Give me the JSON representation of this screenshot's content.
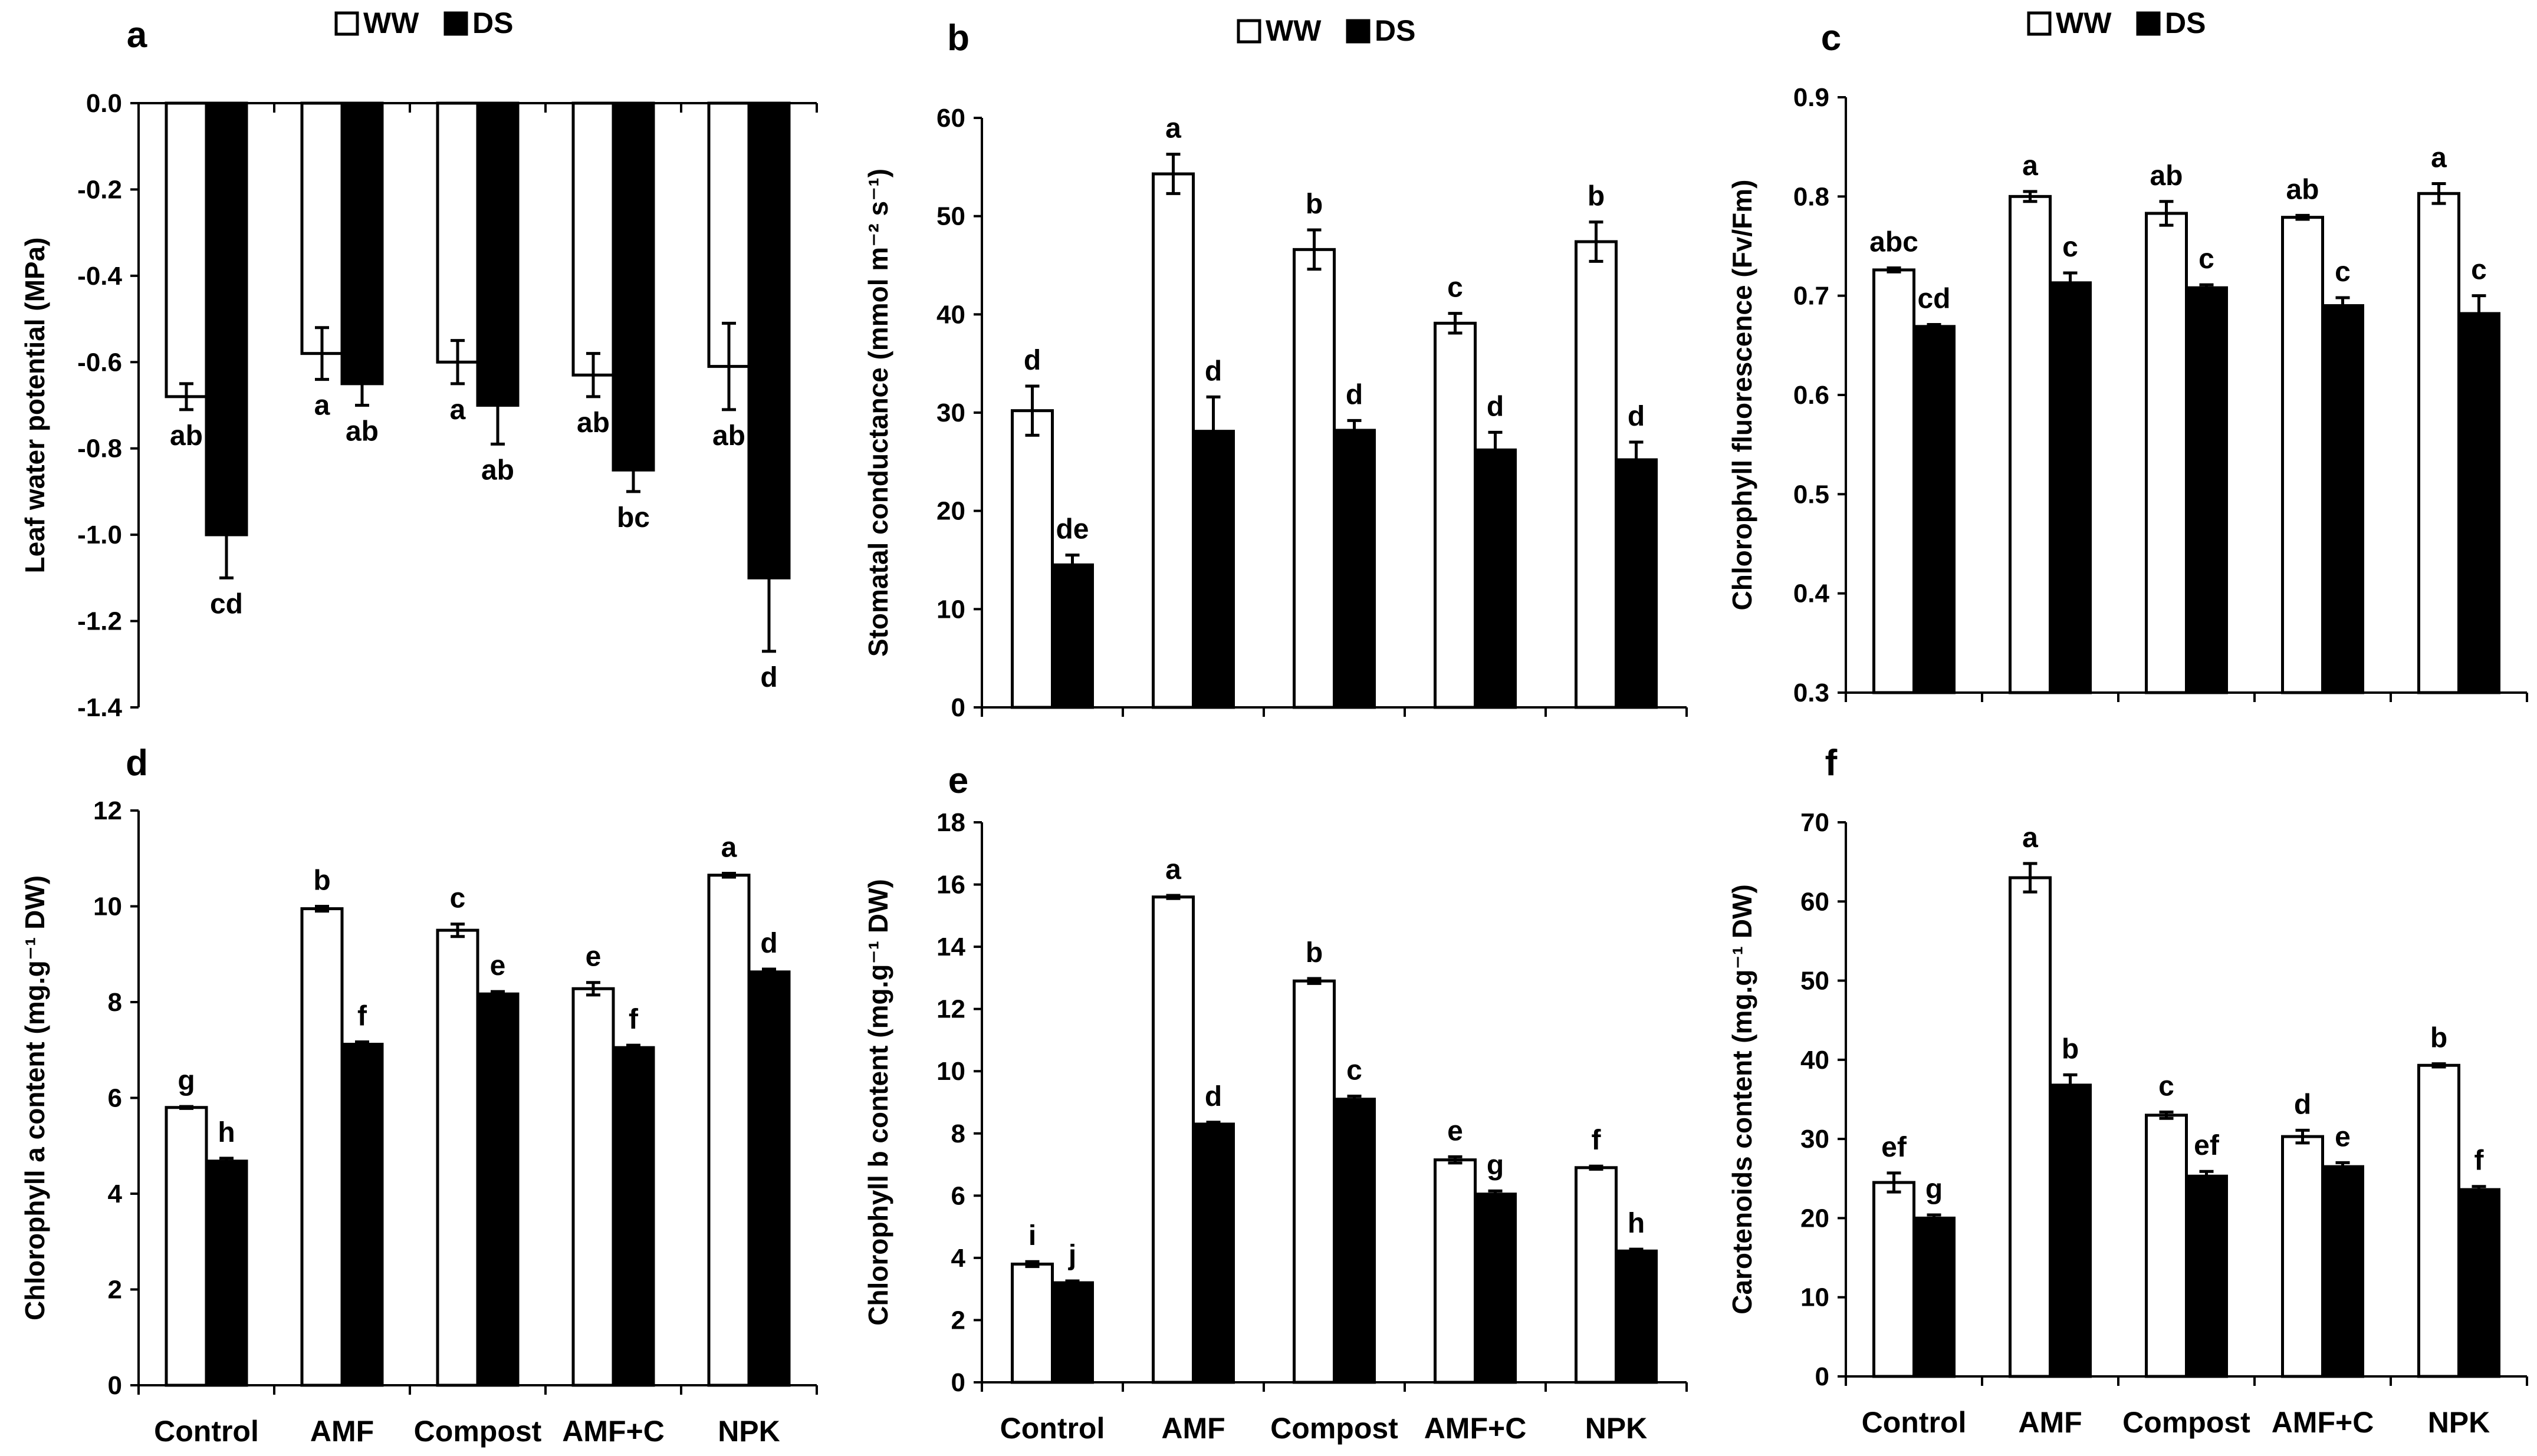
{
  "colors": {
    "ww": "#ffffff",
    "ds": "#000000",
    "stroke": "#000000"
  },
  "chart_data": [
    {
      "panel": "a",
      "type": "bar",
      "ylabel": "Leaf water potential  (MPa)",
      "ylim": [
        -1.4,
        0
      ],
      "yticks": [
        0,
        -0.2,
        -0.4,
        -0.6,
        -0.8,
        -1.0,
        -1.2,
        -1.4
      ],
      "tick_labels": [
        "0.0",
        "-0.2",
        "-0.4",
        "-0.6",
        "-0.8",
        "-1.0",
        "-1.2",
        "-1.4"
      ],
      "categories": [
        "Control",
        "AMF",
        "Compost",
        "AMF+C",
        "NPK"
      ],
      "show_categories": false,
      "legend": [
        "WW",
        "DS"
      ],
      "series": [
        {
          "name": "WW",
          "values": [
            -0.68,
            -0.58,
            -0.6,
            -0.63,
            -0.61
          ],
          "errors": [
            0.03,
            0.06,
            0.05,
            0.05,
            0.1
          ],
          "letters": [
            "ab",
            "a",
            "a",
            "ab",
            "ab"
          ]
        },
        {
          "name": "DS",
          "values": [
            -1.0,
            -0.65,
            -0.7,
            -0.85,
            -1.1
          ],
          "errors": [
            0.1,
            0.05,
            0.09,
            0.05,
            0.17
          ],
          "letters": [
            "cd",
            "ab",
            "ab",
            "bc",
            "d"
          ]
        }
      ]
    },
    {
      "panel": "b",
      "type": "bar",
      "ylabel": "Stomatal conductance (mmol m⁻² s⁻¹)",
      "ylim": [
        0,
        60
      ],
      "yticks": [
        0,
        10,
        20,
        30,
        40,
        50,
        60
      ],
      "tick_labels": [
        "0",
        "10",
        "20",
        "30",
        "40",
        "50",
        "60"
      ],
      "categories": [
        "Control",
        "AMF",
        "Compost",
        "AMF+C",
        "NPK"
      ],
      "show_categories": false,
      "legend": [
        "WW",
        "DS"
      ],
      "series": [
        {
          "name": "WW",
          "values": [
            30.2,
            54.3,
            46.6,
            39.1,
            47.4
          ],
          "errors": [
            2.5,
            2.0,
            2.0,
            1.0,
            2.0
          ],
          "letters": [
            "d",
            "a",
            "b",
            "c",
            "b"
          ]
        },
        {
          "name": "DS",
          "values": [
            14.5,
            28.1,
            28.2,
            26.2,
            25.2
          ],
          "errors": [
            1.0,
            3.5,
            1.0,
            1.8,
            1.8
          ],
          "letters": [
            "de",
            "d",
            "d",
            "d",
            "d"
          ]
        }
      ]
    },
    {
      "panel": "c",
      "type": "bar",
      "ylabel": "Chlorophyll fluorescence (Fv/Fm)",
      "ylim": [
        0.3,
        0.9
      ],
      "yticks": [
        0.3,
        0.4,
        0.5,
        0.6,
        0.7,
        0.8,
        0.9
      ],
      "tick_labels": [
        "0.3",
        "0.4",
        "0.5",
        "0.6",
        "0.7",
        "0.8",
        "0.9"
      ],
      "categories": [
        "Control",
        "AMF",
        "Compost",
        "AMF+C",
        "NPK"
      ],
      "show_categories": false,
      "legend": [
        "WW",
        "DS"
      ],
      "series": [
        {
          "name": "WW",
          "values": [
            0.726,
            0.8,
            0.783,
            0.779,
            0.803
          ],
          "errors": [
            0.002,
            0.005,
            0.012,
            0.002,
            0.01
          ],
          "letters": [
            "abc",
            "a",
            "ab",
            "ab",
            "a"
          ]
        },
        {
          "name": "DS",
          "values": [
            0.669,
            0.713,
            0.708,
            0.69,
            0.682
          ],
          "errors": [
            0.002,
            0.01,
            0.003,
            0.008,
            0.018
          ],
          "letters": [
            "cd",
            "c",
            "c",
            "c",
            "c"
          ]
        }
      ]
    },
    {
      "panel": "d",
      "type": "bar",
      "ylabel": "Chlorophyll a content  (mg.g⁻¹ DW)",
      "ylim": [
        0,
        12
      ],
      "yticks": [
        0,
        2,
        4,
        6,
        8,
        10,
        12
      ],
      "tick_labels": [
        "0",
        "2",
        "4",
        "6",
        "8",
        "10",
        "12"
      ],
      "categories": [
        "Control",
        "AMF",
        "Compost",
        "AMF+C",
        "NPK"
      ],
      "show_categories": true,
      "legend": [],
      "series": [
        {
          "name": "WW",
          "values": [
            5.8,
            9.95,
            9.5,
            8.28,
            10.65
          ],
          "errors": [
            0.02,
            0.05,
            0.13,
            0.13,
            0.04
          ],
          "letters": [
            "g",
            "b",
            "c",
            "e",
            "a"
          ]
        },
        {
          "name": "DS",
          "values": [
            4.68,
            7.12,
            8.17,
            7.05,
            8.63
          ],
          "errors": [
            0.06,
            0.05,
            0.05,
            0.05,
            0.06
          ],
          "letters": [
            "h",
            "f",
            "e",
            "f",
            "d"
          ]
        }
      ]
    },
    {
      "panel": "e",
      "type": "bar",
      "ylabel": "Chlorophyll  b content (mg.g⁻¹ DW)",
      "ylim": [
        0,
        18
      ],
      "yticks": [
        0,
        2,
        4,
        6,
        8,
        10,
        12,
        14,
        16,
        18
      ],
      "tick_labels": [
        "0",
        "2",
        "4",
        "6",
        "8",
        "10",
        "12",
        "14",
        "16",
        "18"
      ],
      "categories": [
        "Control",
        "AMF",
        "Compost",
        "AMF+C",
        "NPK"
      ],
      "show_categories": true,
      "legend": [],
      "series": [
        {
          "name": "WW",
          "values": [
            3.8,
            15.6,
            12.9,
            7.15,
            6.9
          ],
          "errors": [
            0.08,
            0.05,
            0.08,
            0.1,
            0.05
          ],
          "letters": [
            "i",
            "a",
            "b",
            "e",
            "f"
          ]
        },
        {
          "name": "DS",
          "values": [
            3.2,
            8.3,
            9.1,
            6.05,
            4.22
          ],
          "errors": [
            0.06,
            0.06,
            0.1,
            0.1,
            0.06
          ],
          "letters": [
            "j",
            "d",
            "c",
            "g",
            "h"
          ]
        }
      ]
    },
    {
      "panel": "f",
      "type": "bar",
      "ylabel": "Carotenoids  content (mg.g⁻¹ DW)",
      "ylim": [
        0,
        70
      ],
      "yticks": [
        0,
        10,
        20,
        30,
        40,
        50,
        60,
        70
      ],
      "tick_labels": [
        "0",
        "10",
        "20",
        "30",
        "40",
        "50",
        "60",
        "70"
      ],
      "categories": [
        "Control",
        "AMF",
        "Compost",
        "AMF+C",
        "NPK"
      ],
      "show_categories": true,
      "legend": [],
      "series": [
        {
          "name": "WW",
          "values": [
            24.5,
            63.0,
            33.0,
            30.3,
            39.3
          ],
          "errors": [
            1.2,
            1.8,
            0.4,
            0.8,
            0.2
          ],
          "letters": [
            "ef",
            "a",
            "c",
            "d",
            "b"
          ]
        },
        {
          "name": "DS",
          "values": [
            20.0,
            36.8,
            25.3,
            26.5,
            23.6
          ],
          "errors": [
            0.4,
            1.3,
            0.6,
            0.5,
            0.4
          ],
          "letters": [
            "g",
            "b",
            "ef",
            "e",
            "f"
          ]
        }
      ]
    }
  ]
}
